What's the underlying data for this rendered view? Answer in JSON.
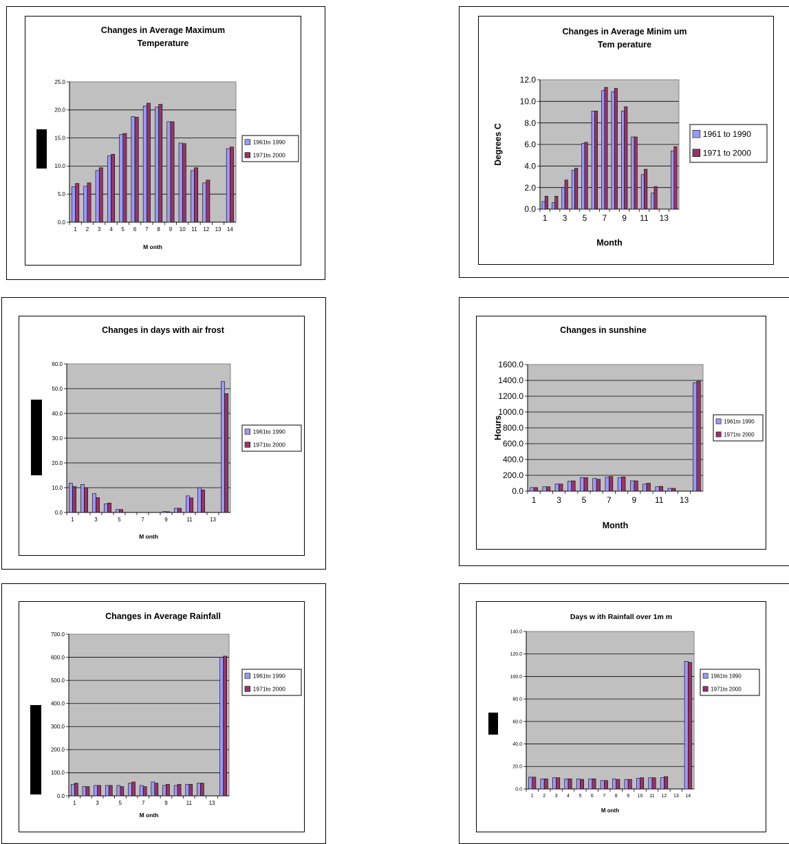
{
  "colors": {
    "series1": "#9999ff",
    "series2": "#993366",
    "plot_bg": "#c0c0c0"
  },
  "chart_data": [
    {
      "type": "bar",
      "title": "Changes in Average Maximum Temperature",
      "title_lines": [
        "Changes in Average Maximum",
        "Temperature"
      ],
      "xlabel": "M onth",
      "ylabel": "",
      "categories": [
        1,
        2,
        3,
        4,
        5,
        6,
        7,
        8,
        9,
        10,
        11,
        12,
        13,
        14
      ],
      "x_tick_labels": [
        "1",
        "2",
        "3",
        "4",
        "5",
        "6",
        "7",
        "8",
        "9",
        "10",
        "11",
        "12",
        "13",
        "14"
      ],
      "y_tick_labels": [
        "0.0",
        "5.0",
        "10.0",
        "15.0",
        "20.0",
        "25.0"
      ],
      "ylim": [
        0,
        25
      ],
      "legend": [
        "1961to 1990",
        "1971to 2000"
      ],
      "legend_position": "right",
      "series": [
        {
          "name": "1961to 1990",
          "values": [
            6.3,
            6.4,
            9.2,
            11.8,
            15.6,
            18.8,
            20.7,
            20.5,
            17.9,
            14.1,
            9.2,
            7.0,
            0,
            13.1
          ]
        },
        {
          "name": "1971to 2000",
          "values": [
            6.9,
            7.0,
            9.7,
            12.1,
            15.8,
            18.7,
            21.2,
            21.0,
            17.9,
            14.0,
            9.7,
            7.5,
            0,
            13.4
          ]
        }
      ]
    },
    {
      "type": "bar",
      "title": "Changes in Average Minimum Temperature",
      "title_lines": [
        "Changes in Average Minim um",
        "Tem perature"
      ],
      "xlabel": "Month",
      "ylabel": "Degrees C",
      "categories": [
        1,
        2,
        3,
        4,
        5,
        6,
        7,
        8,
        9,
        10,
        11,
        12,
        13,
        14
      ],
      "x_tick_labels": [
        "1",
        "",
        "3",
        "",
        "5",
        "",
        "7",
        "",
        "9",
        "",
        "11",
        "",
        "13",
        ""
      ],
      "y_tick_labels": [
        "0.0",
        "2.0",
        "4.0",
        "6.0",
        "8.0",
        "10.0",
        "12.0"
      ],
      "ylim": [
        0,
        12
      ],
      "legend": [
        "1961 to 1990",
        "1971 to 2000"
      ],
      "legend_position": "right",
      "series": [
        {
          "name": "1961 to 1990",
          "values": [
            0.7,
            0.6,
            2.0,
            3.6,
            6.1,
            9.1,
            11.0,
            10.9,
            9.1,
            6.7,
            3.2,
            1.5,
            0,
            5.4
          ]
        },
        {
          "name": "1971 to 2000",
          "values": [
            1.2,
            1.2,
            2.7,
            3.8,
            6.2,
            9.1,
            11.3,
            11.2,
            9.5,
            6.7,
            3.7,
            2.1,
            0,
            5.8
          ]
        }
      ]
    },
    {
      "type": "bar",
      "title": "Changes in days with air frost",
      "title_lines": [
        "Changes in days with air frost"
      ],
      "xlabel": "M onth",
      "ylabel": "",
      "categories": [
        1,
        2,
        3,
        4,
        5,
        6,
        7,
        8,
        9,
        10,
        11,
        12,
        13,
        14
      ],
      "x_tick_labels": [
        "1",
        "",
        "3",
        "",
        "5",
        "",
        "7",
        "",
        "9",
        "",
        "11",
        "",
        "13",
        ""
      ],
      "y_tick_labels": [
        "0.0",
        "10.0",
        "20.0",
        "30.0",
        "40.0",
        "50.0",
        "60.0"
      ],
      "ylim": [
        0,
        60
      ],
      "legend": [
        "1961to 1990",
        "1971to 2000"
      ],
      "legend_position": "right",
      "series": [
        {
          "name": "1961to 1990",
          "values": [
            11.8,
            11.3,
            7.6,
            3.5,
            1.2,
            0,
            0,
            0,
            0.4,
            1.7,
            6.7,
            10.0,
            0,
            52.9
          ]
        },
        {
          "name": "1971to 2000",
          "values": [
            10.5,
            10.0,
            6.0,
            3.8,
            1.2,
            0,
            0,
            0,
            0.3,
            1.7,
            5.9,
            9.1,
            0,
            48.0
          ]
        }
      ]
    },
    {
      "type": "bar",
      "title": "Changes in sunshine",
      "title_lines": [
        "Changes in sunshine"
      ],
      "xlabel": "Month",
      "ylabel": "Hours",
      "categories": [
        1,
        2,
        3,
        4,
        5,
        6,
        7,
        8,
        9,
        10,
        11,
        12,
        13,
        14
      ],
      "x_tick_labels": [
        "1",
        "",
        "3",
        "",
        "5",
        "",
        "7",
        "",
        "9",
        "",
        "11",
        "",
        "13",
        ""
      ],
      "y_tick_labels": [
        "0.0",
        "200.0",
        "400.0",
        "600.0",
        "800.0",
        "1000.0",
        "1200.0",
        "1400.0",
        "1600.0"
      ],
      "ylim": [
        0,
        1600
      ],
      "legend": [
        "1961to 1990",
        "1971to 2000"
      ],
      "legend_position": "right",
      "series": [
        {
          "name": "1961to 1990",
          "values": [
            45,
            55,
            90,
            125,
            170,
            160,
            175,
            170,
            130,
            90,
            55,
            35,
            0,
            1370
          ]
        },
        {
          "name": "1971to 2000",
          "values": [
            45,
            55,
            90,
            130,
            170,
            150,
            185,
            180,
            130,
            100,
            60,
            35,
            0,
            1390
          ]
        }
      ]
    },
    {
      "type": "bar",
      "title": "Changes in Average Rainfall",
      "title_lines": [
        "Changes in Average Rainfall"
      ],
      "xlabel": "M onth",
      "ylabel": "",
      "categories": [
        1,
        2,
        3,
        4,
        5,
        6,
        7,
        8,
        9,
        10,
        11,
        12,
        13,
        14
      ],
      "x_tick_labels": [
        "1",
        "",
        "3",
        "",
        "5",
        "",
        "7",
        "",
        "9",
        "",
        "11",
        "",
        "13",
        ""
      ],
      "y_tick_labels": [
        "0.0",
        "100.0",
        "200.0",
        "300.0",
        "400.0",
        "500.0",
        "600.0",
        "700.0"
      ],
      "ylim": [
        0,
        700
      ],
      "legend": [
        "1961to 1990",
        "1971to 2000"
      ],
      "legend_position": "right",
      "series": [
        {
          "name": "1961to 1990",
          "values": [
            50,
            40,
            45,
            45,
            45,
            55,
            45,
            60,
            45,
            45,
            50,
            55,
            0,
            600
          ]
        },
        {
          "name": "1971to 2000",
          "values": [
            55,
            40,
            45,
            45,
            40,
            60,
            40,
            55,
            50,
            50,
            50,
            55,
            0,
            605
          ]
        }
      ]
    },
    {
      "type": "bar",
      "title": "Days with Rainfall over 1mm",
      "title_lines": [
        "Days w ith Rainfall over 1m m"
      ],
      "xlabel": "M onth",
      "ylabel": "",
      "categories": [
        1,
        2,
        3,
        4,
        5,
        6,
        7,
        8,
        9,
        10,
        11,
        12,
        13,
        14
      ],
      "x_tick_labels": [
        "1",
        "2",
        "3",
        "4",
        "5",
        "6",
        "7",
        "8",
        "9",
        "10",
        "11",
        "12",
        "13",
        "14"
      ],
      "y_tick_labels": [
        "0.0",
        "20.0",
        "40.0",
        "60.0",
        "80.0",
        "100.0",
        "120.0",
        "140.0"
      ],
      "ylim": [
        0,
        140
      ],
      "legend": [
        "1961to 1990",
        "1971to 2000"
      ],
      "legend_position": "right",
      "series": [
        {
          "name": "1961to 1990",
          "values": [
            10.5,
            9.0,
            10.0,
            9.0,
            9.0,
            9.0,
            7.5,
            9.0,
            8.5,
            9.5,
            10.0,
            10.0,
            0,
            113.5
          ]
        },
        {
          "name": "1971to 2000",
          "values": [
            10.5,
            9.0,
            10.0,
            9.0,
            8.5,
            9.0,
            7.5,
            8.5,
            8.5,
            10.0,
            10.0,
            11.0,
            0,
            112.5
          ]
        }
      ]
    }
  ]
}
